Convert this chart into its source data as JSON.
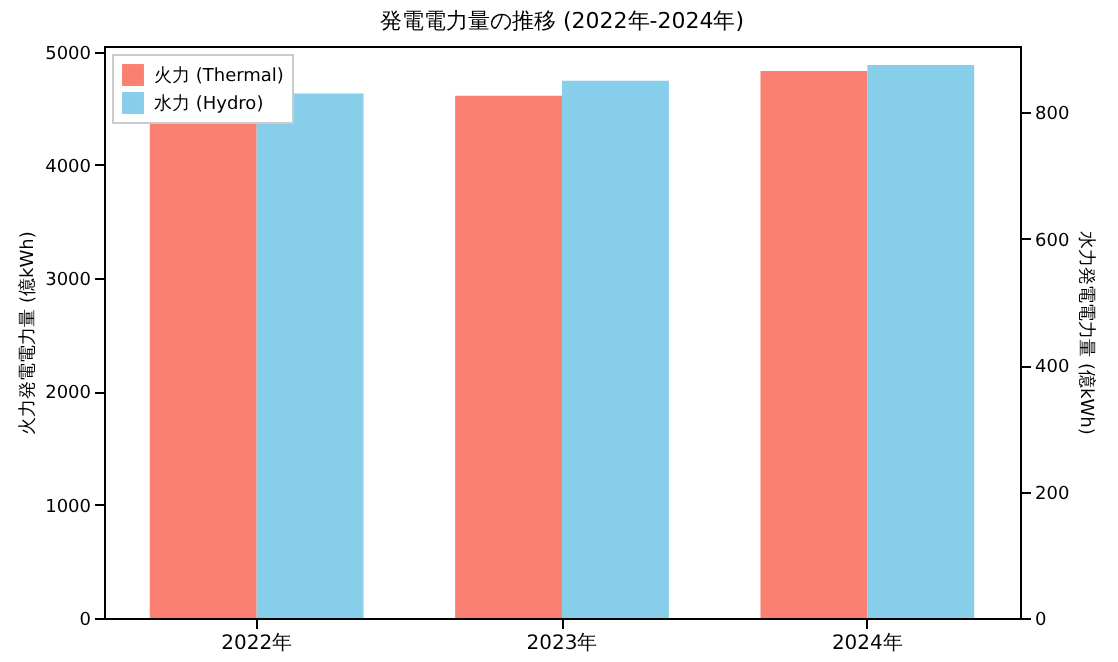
{
  "chart_data": {
    "type": "bar",
    "title": "発電電力量の推移 (2022年-2024年)",
    "categories": [
      "2022年",
      "2023年",
      "2024年"
    ],
    "ylabel": "火力発電電力量 (億kWh)",
    "y2label": "水力発電電力量 (億kWh)",
    "ylim": [
      0,
      5050
    ],
    "yticks": [
      0,
      1000,
      2000,
      3000,
      4000,
      5000
    ],
    "y2lim": [
      0,
      905
    ],
    "y2ticks": [
      0,
      200,
      400,
      600,
      800
    ],
    "series": [
      {
        "name": "火力 (Thermal)",
        "color": "#fa8072",
        "values": [
          4400,
          4610,
          4830
        ]
      },
      {
        "name": "水力 (Hydro)",
        "color": "#87ceeb",
        "values": [
          830,
          850,
          875
        ],
        "axis": "y2"
      }
    ],
    "legend": "top left",
    "grid": false
  }
}
